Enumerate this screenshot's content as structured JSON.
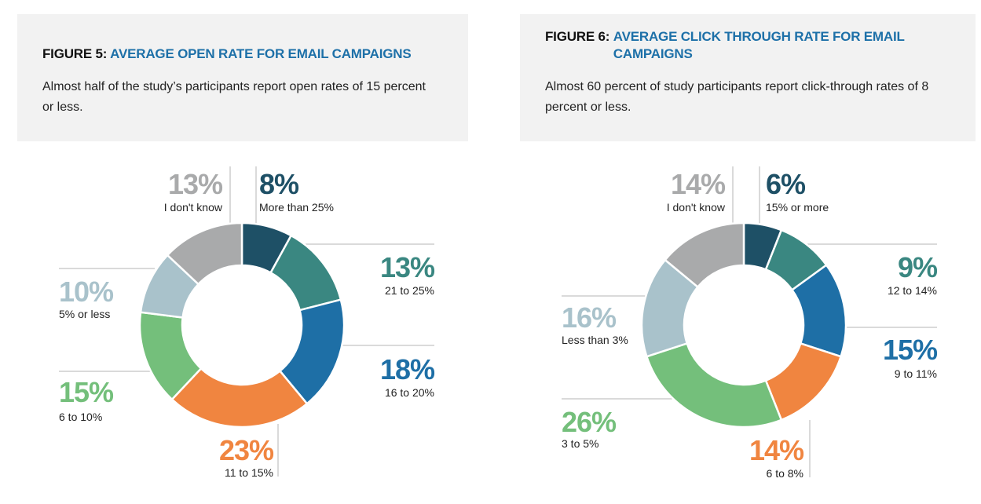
{
  "figures": [
    {
      "number": "FIGURE 5:",
      "title": "AVERAGE OPEN RATE FOR EMAIL CAMPAIGNS",
      "description": "Almost half of the study’s participants report open rates of 15 percent or less."
    },
    {
      "number": "FIGURE 6:",
      "title": "AVERAGE CLICK THROUGH RATE FOR EMAIL CAMPAIGNS",
      "description": "Almost 60 percent of study participants report click-through rates of 8 percent or less."
    }
  ],
  "chart_data": [
    {
      "type": "pie",
      "donut": true,
      "title": "AVERAGE OPEN RATE FOR EMAIL CAMPAIGNS",
      "slices": [
        {
          "label": "More than 25%",
          "value": 8,
          "value_label": "8%",
          "color": "#1e5066"
        },
        {
          "label": "21 to 25%",
          "value": 13,
          "value_label": "13%",
          "color": "#3a8781"
        },
        {
          "label": "16 to 20%",
          "value": 18,
          "value_label": "18%",
          "color": "#1e6fa6"
        },
        {
          "label": "11 to 15%",
          "value": 23,
          "value_label": "23%",
          "color": "#f08540"
        },
        {
          "label": "6 to 10%",
          "value": 15,
          "value_label": "15%",
          "color": "#74bf7b"
        },
        {
          "label": "5% or less",
          "value": 10,
          "value_label": "10%",
          "color": "#a9c2cb"
        },
        {
          "label": "I don't know",
          "value": 13,
          "value_label": "13%",
          "color": "#a9aaab"
        }
      ]
    },
    {
      "type": "pie",
      "donut": true,
      "title": "AVERAGE CLICK THROUGH RATE FOR EMAIL CAMPAIGNS",
      "slices": [
        {
          "label": "15% or more",
          "value": 6,
          "value_label": "6%",
          "color": "#1e5066"
        },
        {
          "label": "12 to 14%",
          "value": 9,
          "value_label": "9%",
          "color": "#3a8781"
        },
        {
          "label": "9 to 11%",
          "value": 15,
          "value_label": "15%",
          "color": "#1e6fa6"
        },
        {
          "label": "6 to 8%",
          "value": 14,
          "value_label": "14%",
          "color": "#f08540"
        },
        {
          "label": "3 to 5%",
          "value": 26,
          "value_label": "26%",
          "color": "#74bf7b"
        },
        {
          "label": "Less than 3%",
          "value": 16,
          "value_label": "16%",
          "color": "#a9c2cb"
        },
        {
          "label": "I don't know",
          "value": 14,
          "value_label": "14%",
          "color": "#a9aaab"
        }
      ]
    }
  ]
}
